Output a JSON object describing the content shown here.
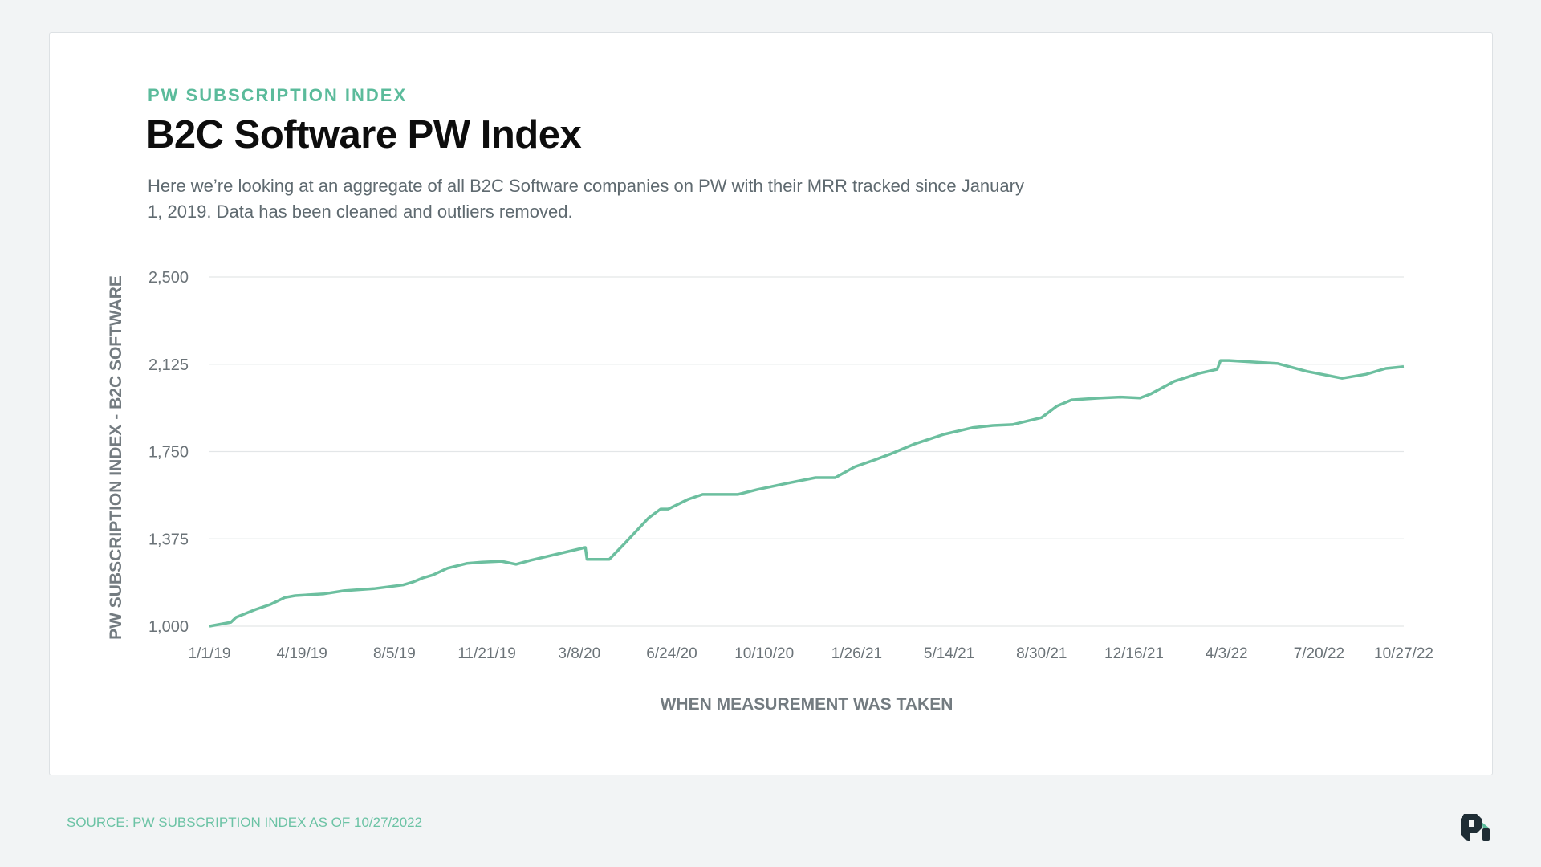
{
  "header": {
    "kicker": "PW SUBSCRIPTION INDEX",
    "title": "B2C Software PW Index",
    "description": "Here we’re looking at an aggregate of all B2C Software companies on PW with their MRR tracked since January 1, 2019. Data has been cleaned and outliers removed."
  },
  "footer": {
    "source": "SOURCE: PW SUBSCRIPTION INDEX AS OF 10/27/2022",
    "logo_icon": "pw-logo-icon"
  },
  "colors": {
    "line": "#6cbf9f",
    "accent": "#5bbb9b",
    "grid": "#e3e6e8",
    "text": "#6b7378"
  },
  "chart_data": {
    "type": "line",
    "title": "",
    "xlabel": "WHEN MEASUREMENT WAS TAKEN",
    "ylabel": "PW SUBSCRIPTION INDEX - B2C SOFTWARE",
    "xlim": [
      "2019-01-01",
      "2022-10-27"
    ],
    "ylim": [
      1000,
      2500
    ],
    "grid": true,
    "y_ticks": [
      {
        "value": 1000,
        "label": "1,000"
      },
      {
        "value": 1375,
        "label": "1,375"
      },
      {
        "value": 1750,
        "label": "1,750"
      },
      {
        "value": 2125,
        "label": "2,125"
      },
      {
        "value": 2500,
        "label": "2,500"
      }
    ],
    "x_ticks": [
      {
        "value": "2019-01-01",
        "label": "1/1/19"
      },
      {
        "value": "2019-04-19",
        "label": "4/19/19"
      },
      {
        "value": "2019-08-05",
        "label": "8/5/19"
      },
      {
        "value": "2019-11-21",
        "label": "11/21/19"
      },
      {
        "value": "2020-03-08",
        "label": "3/8/20"
      },
      {
        "value": "2020-06-24",
        "label": "6/24/20"
      },
      {
        "value": "2020-10-10",
        "label": "10/10/20"
      },
      {
        "value": "2021-01-26",
        "label": "1/26/21"
      },
      {
        "value": "2021-05-14",
        "label": "5/14/21"
      },
      {
        "value": "2021-08-30",
        "label": "8/30/21"
      },
      {
        "value": "2021-12-16",
        "label": "12/16/21"
      },
      {
        "value": "2022-04-03",
        "label": "4/3/22"
      },
      {
        "value": "2022-07-20",
        "label": "7/20/22"
      },
      {
        "value": "2022-10-27",
        "label": "10/27/22"
      }
    ],
    "series": [
      {
        "x": [
          "2019-01-01",
          "2019-01-26",
          "2019-02-01",
          "2019-02-24",
          "2019-03-13",
          "2019-03-30",
          "2019-04-11",
          "2019-05-15",
          "2019-06-07",
          "2019-07-12",
          "2019-08-15",
          "2019-08-27",
          "2019-09-07",
          "2019-09-19",
          "2019-10-06",
          "2019-10-29",
          "2019-11-15",
          "2019-12-08",
          "2019-12-25",
          "2020-01-11",
          "2020-03-15",
          "2020-03-17",
          "2020-04-12",
          "2020-04-30",
          "2020-05-28",
          "2020-06-11",
          "2020-06-20",
          "2020-07-13",
          "2020-07-30",
          "2020-09-09",
          "2020-10-02",
          "2020-11-05",
          "2020-12-09",
          "2021-01-01",
          "2021-01-24",
          "2021-02-16",
          "2021-03-06",
          "2021-04-03",
          "2021-05-08",
          "2021-06-11",
          "2021-07-04",
          "2021-07-27",
          "2021-08-30",
          "2021-09-17",
          "2021-10-04",
          "2021-11-07",
          "2021-11-30",
          "2021-12-23",
          "2022-01-04",
          "2022-02-01",
          "2022-03-02",
          "2022-03-23",
          "2022-03-27",
          "2022-04-06",
          "2022-06-02",
          "2022-07-06",
          "2022-08-16",
          "2022-09-13",
          "2022-10-06",
          "2022-10-27"
        ],
        "y": [
          1000,
          1017,
          1038,
          1072,
          1093,
          1123,
          1131,
          1139,
          1152,
          1161,
          1177,
          1190,
          1207,
          1220,
          1249,
          1270,
          1275,
          1279,
          1266,
          1283,
          1338,
          1287,
          1287,
          1355,
          1465,
          1503,
          1503,
          1545,
          1566,
          1566,
          1587,
          1613,
          1638,
          1638,
          1685,
          1714,
          1739,
          1782,
          1824,
          1853,
          1862,
          1866,
          1896,
          1946,
          1972,
          1980,
          1984,
          1980,
          1997,
          2052,
          2086,
          2103,
          2141,
          2141,
          2128,
          2094,
          2065,
          2082,
          2107,
          2115
        ]
      }
    ]
  }
}
